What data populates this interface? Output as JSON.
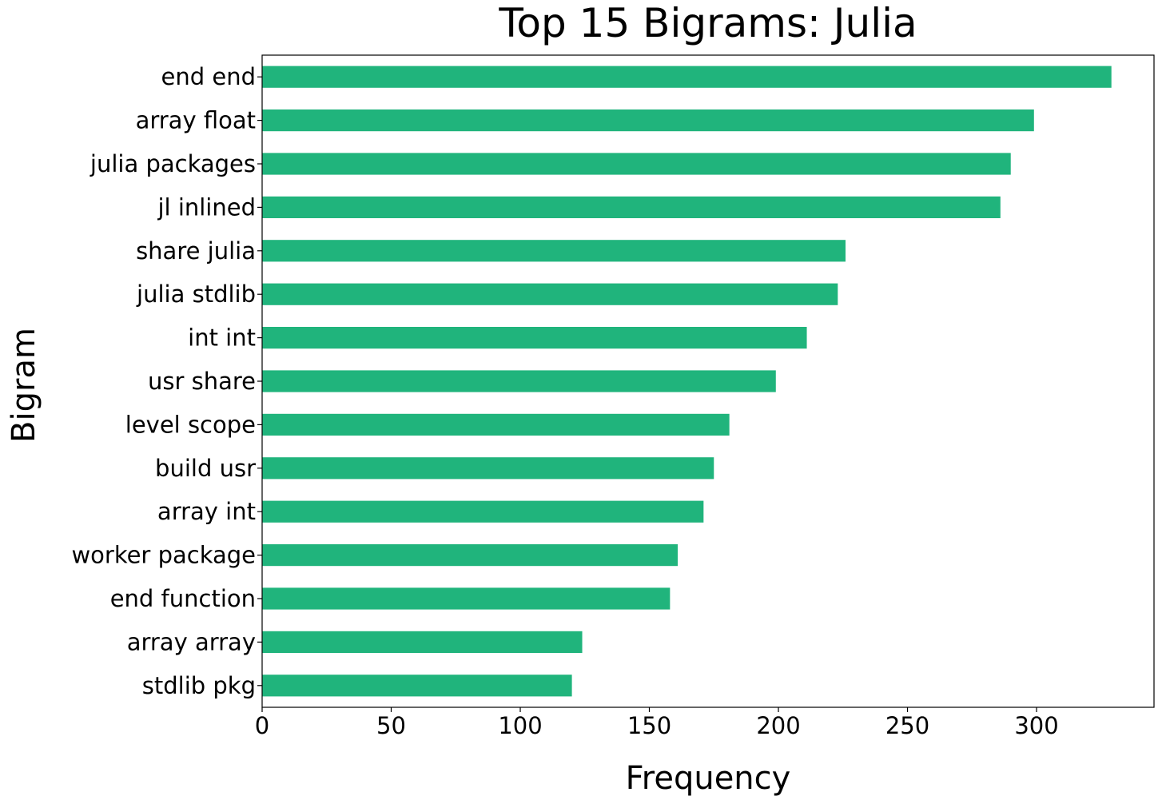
{
  "chart_data": {
    "type": "bar",
    "orientation": "horizontal",
    "title": "Top 15 Bigrams: Julia",
    "xlabel": "Frequency",
    "ylabel": "Bigram",
    "categories": [
      "end end",
      "array float",
      "julia packages",
      "jl inlined",
      "share julia",
      "julia stdlib",
      "int int",
      "usr share",
      "level scope",
      "build usr",
      "array int",
      "worker package",
      "end function",
      "array array",
      "stdlib pkg"
    ],
    "values": [
      329,
      299,
      290,
      286,
      226,
      223,
      211,
      199,
      181,
      175,
      171,
      161,
      158,
      124,
      120
    ],
    "xlim": [
      0,
      345.5
    ],
    "xticks": [
      0,
      50,
      100,
      150,
      200,
      250,
      300
    ],
    "grid": false,
    "legend": "none",
    "bar_color": "#20b47c"
  }
}
